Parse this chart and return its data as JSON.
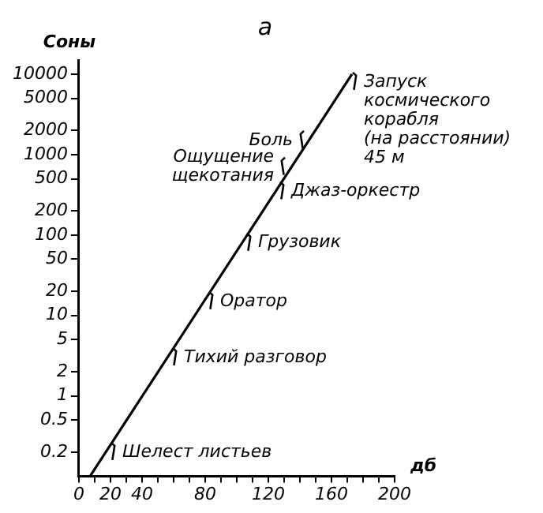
{
  "chart_data": {
    "type": "line",
    "title": "а",
    "xlabel": "дб",
    "ylabel": "Соны",
    "log": "y",
    "grid": false,
    "legend": false,
    "marker": "none",
    "xlim": [
      0,
      200
    ],
    "ylim": [
      0.1,
      15000
    ],
    "xticks": [
      0,
      {
        "value": 10,
        "label": null
      },
      20,
      {
        "value": 30,
        "label": null
      },
      40,
      {
        "value": 50,
        "label": null
      },
      {
        "value": 60,
        "label": null
      },
      {
        "value": 70,
        "label": null
      },
      80,
      {
        "value": 90,
        "label": null
      },
      {
        "value": 100,
        "label": null
      },
      {
        "value": 110,
        "label": null
      },
      120,
      {
        "value": 130,
        "label": null
      },
      {
        "value": 140,
        "label": null
      },
      {
        "value": 150,
        "label": null
      },
      160,
      {
        "value": 170,
        "label": null
      },
      {
        "value": 180,
        "label": null
      },
      {
        "value": 190,
        "label": null
      },
      200
    ],
    "yticks": [
      0.2,
      0.5,
      1,
      2,
      5,
      10,
      20,
      50,
      100,
      200,
      500,
      1000,
      2000,
      5000,
      10000
    ],
    "series": [
      {
        "type": "line",
        "color": "#000000",
        "x": [
          7,
          173
        ],
        "values": [
          0.1,
          10000
        ]
      }
    ],
    "annotations": [
      {
        "text": "Шелест листьев",
        "x": 17,
        "y": 0.2
      },
      {
        "text": "Тихий разговор",
        "x": 56,
        "y": 3
      },
      {
        "text": "Оратор",
        "x": 79,
        "y": 15
      },
      {
        "text": "Грузовик",
        "x": 103,
        "y": 80
      },
      {
        "text": "Джаз-оркестр",
        "x": 124,
        "y": 350
      },
      {
        "text": "Ощущение\nщекотания",
        "x": 134,
        "y": 700
      },
      {
        "text": "Боль",
        "x": 146,
        "y": 1500
      },
      {
        "text": "Запуск\nкосмического\nкорабля\n(на расстоянии)\n45 м",
        "x": 170,
        "y": 8000
      }
    ]
  }
}
